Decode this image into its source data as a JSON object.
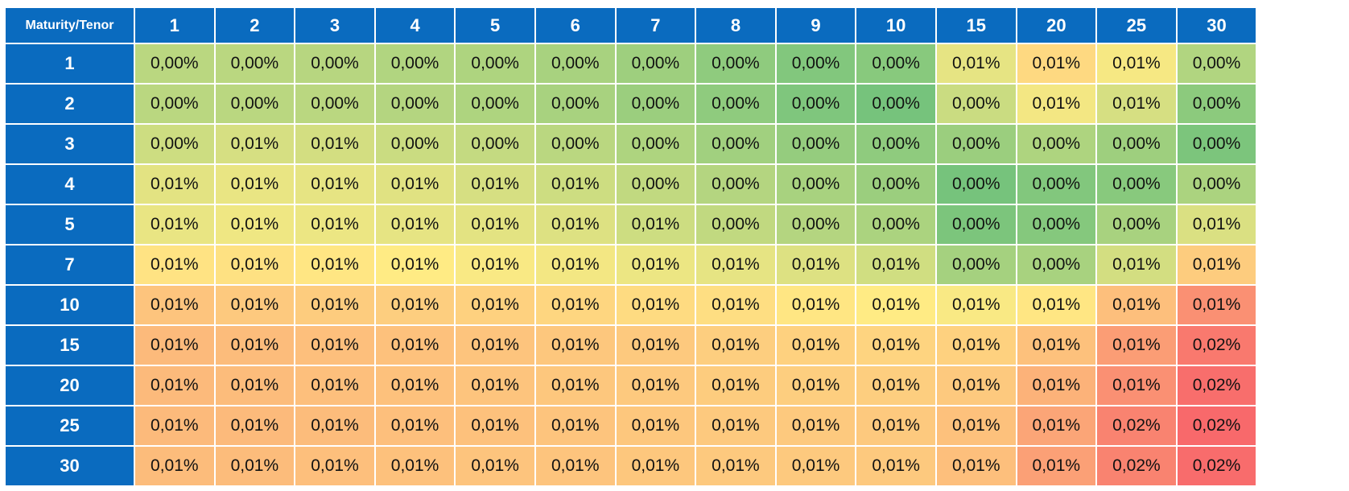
{
  "chart_data": {
    "type": "heatmap",
    "corner_label": "Maturity/Tenor",
    "x_labels": [
      "1",
      "2",
      "3",
      "4",
      "5",
      "6",
      "7",
      "8",
      "9",
      "10",
      "15",
      "20",
      "25",
      "30"
    ],
    "y_labels": [
      "1",
      "2",
      "3",
      "4",
      "5",
      "7",
      "10",
      "15",
      "20",
      "25",
      "30"
    ],
    "cells": [
      [
        "0,00%",
        "0,00%",
        "0,00%",
        "0,00%",
        "0,00%",
        "0,00%",
        "0,00%",
        "0,00%",
        "0,00%",
        "0,00%",
        "0,01%",
        "0,01%",
        "0,01%",
        "0,00%"
      ],
      [
        "0,00%",
        "0,00%",
        "0,00%",
        "0,00%",
        "0,00%",
        "0,00%",
        "0,00%",
        "0,00%",
        "0,00%",
        "0,00%",
        "0,00%",
        "0,01%",
        "0,01%",
        "0,00%"
      ],
      [
        "0,00%",
        "0,01%",
        "0,01%",
        "0,00%",
        "0,00%",
        "0,00%",
        "0,00%",
        "0,00%",
        "0,00%",
        "0,00%",
        "0,00%",
        "0,00%",
        "0,00%",
        "0,00%"
      ],
      [
        "0,01%",
        "0,01%",
        "0,01%",
        "0,01%",
        "0,01%",
        "0,01%",
        "0,00%",
        "0,00%",
        "0,00%",
        "0,00%",
        "0,00%",
        "0,00%",
        "0,00%",
        "0,00%"
      ],
      [
        "0,01%",
        "0,01%",
        "0,01%",
        "0,01%",
        "0,01%",
        "0,01%",
        "0,01%",
        "0,00%",
        "0,00%",
        "0,00%",
        "0,00%",
        "0,00%",
        "0,00%",
        "0,01%"
      ],
      [
        "0,01%",
        "0,01%",
        "0,01%",
        "0,01%",
        "0,01%",
        "0,01%",
        "0,01%",
        "0,01%",
        "0,01%",
        "0,01%",
        "0,00%",
        "0,00%",
        "0,01%",
        "0,01%"
      ],
      [
        "0,01%",
        "0,01%",
        "0,01%",
        "0,01%",
        "0,01%",
        "0,01%",
        "0,01%",
        "0,01%",
        "0,01%",
        "0,01%",
        "0,01%",
        "0,01%",
        "0,01%",
        "0,01%"
      ],
      [
        "0,01%",
        "0,01%",
        "0,01%",
        "0,01%",
        "0,01%",
        "0,01%",
        "0,01%",
        "0,01%",
        "0,01%",
        "0,01%",
        "0,01%",
        "0,01%",
        "0,01%",
        "0,02%"
      ],
      [
        "0,01%",
        "0,01%",
        "0,01%",
        "0,01%",
        "0,01%",
        "0,01%",
        "0,01%",
        "0,01%",
        "0,01%",
        "0,01%",
        "0,01%",
        "0,01%",
        "0,01%",
        "0,02%"
      ],
      [
        "0,01%",
        "0,01%",
        "0,01%",
        "0,01%",
        "0,01%",
        "0,01%",
        "0,01%",
        "0,01%",
        "0,01%",
        "0,01%",
        "0,01%",
        "0,01%",
        "0,02%",
        "0,02%"
      ],
      [
        "0,01%",
        "0,01%",
        "0,01%",
        "0,01%",
        "0,01%",
        "0,01%",
        "0,01%",
        "0,01%",
        "0,01%",
        "0,01%",
        "0,01%",
        "0,01%",
        "0,02%",
        "0,02%"
      ]
    ],
    "color_scale": {
      "low": "#63be7b",
      "mid": "#ffeb84",
      "high": "#f8696b"
    },
    "intensity": [
      [
        0.28,
        0.28,
        0.27,
        0.25,
        0.24,
        0.22,
        0.19,
        0.14,
        0.1,
        0.12,
        0.42,
        0.57,
        0.47,
        0.25
      ],
      [
        0.28,
        0.28,
        0.28,
        0.26,
        0.24,
        0.22,
        0.18,
        0.14,
        0.09,
        0.06,
        0.33,
        0.46,
        0.37,
        0.13
      ],
      [
        0.34,
        0.37,
        0.36,
        0.33,
        0.31,
        0.28,
        0.24,
        0.2,
        0.16,
        0.14,
        0.18,
        0.24,
        0.19,
        0.08
      ],
      [
        0.41,
        0.43,
        0.42,
        0.4,
        0.37,
        0.34,
        0.3,
        0.26,
        0.22,
        0.18,
        0.06,
        0.1,
        0.12,
        0.23
      ],
      [
        0.43,
        0.45,
        0.44,
        0.42,
        0.41,
        0.39,
        0.34,
        0.3,
        0.26,
        0.23,
        0.08,
        0.11,
        0.22,
        0.38
      ],
      [
        0.53,
        0.54,
        0.52,
        0.5,
        0.48,
        0.46,
        0.44,
        0.42,
        0.39,
        0.35,
        0.21,
        0.22,
        0.36,
        0.62
      ],
      [
        0.65,
        0.63,
        0.62,
        0.61,
        0.6,
        0.58,
        0.56,
        0.55,
        0.52,
        0.5,
        0.48,
        0.52,
        0.67,
        0.85
      ],
      [
        0.69,
        0.68,
        0.67,
        0.66,
        0.65,
        0.64,
        0.63,
        0.61,
        0.6,
        0.59,
        0.6,
        0.66,
        0.8,
        0.94
      ],
      [
        0.69,
        0.68,
        0.67,
        0.66,
        0.65,
        0.64,
        0.63,
        0.62,
        0.61,
        0.61,
        0.63,
        0.72,
        0.85,
        0.98
      ],
      [
        0.69,
        0.69,
        0.68,
        0.67,
        0.66,
        0.65,
        0.64,
        0.63,
        0.63,
        0.63,
        0.66,
        0.77,
        0.9,
        1.0
      ],
      [
        0.68,
        0.68,
        0.67,
        0.66,
        0.65,
        0.65,
        0.64,
        0.63,
        0.63,
        0.63,
        0.67,
        0.79,
        0.9,
        0.99
      ]
    ]
  }
}
